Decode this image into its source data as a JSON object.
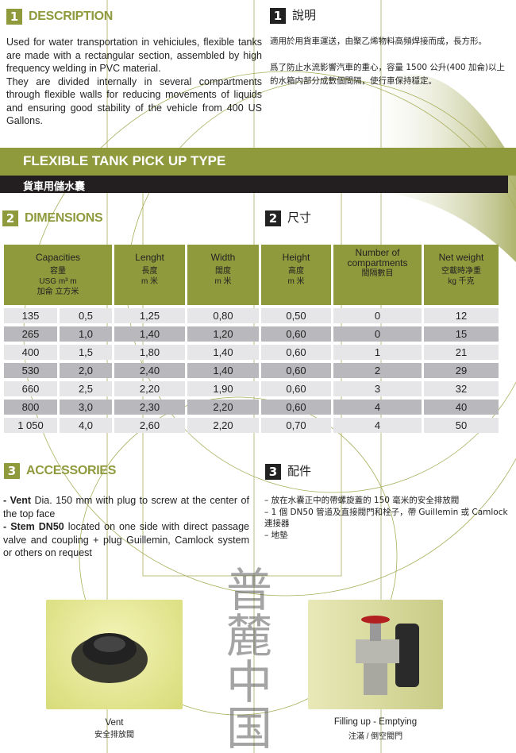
{
  "description": {
    "num": "1",
    "title": "DESCRIPTION",
    "text1": "Used for water transportation in vehiciules, flexible tanks are made with a rectangular section, assembled by high frequency welding in PVC material.",
    "text2": "They are divided internally in several compartments through flexible walls for reducing movements of liquids and ensuring good stability of the vehicle from 400 US Gallons."
  },
  "description_zh": {
    "num": "1",
    "title": "說明",
    "text1": "適用於用貨車運送，由聚乙烯物料高頻焊接而成，長方形。",
    "text2": "爲了防止水流影響汽車的重心，容量 1500 公升(400 加侖)以上的水箱内部分成數個間隔，使行車保持穩定。"
  },
  "banner": {
    "title": "FLEXIBLE TANK PICK UP TYPE",
    "subtitle": "貨車用儲水囊"
  },
  "dimensions": {
    "num": "2",
    "title": "DIMENSIONS",
    "title_zh": "尺寸",
    "headers": [
      {
        "en": "Capacities",
        "zh": "容量",
        "unit": "USG  m³  m",
        "unit_zh": "加侖  立方米"
      },
      {
        "en": "Lenght",
        "zh": "長度",
        "unit": "m 米"
      },
      {
        "en": "Width",
        "zh": "闊度",
        "unit": "m 米"
      },
      {
        "en": "Height",
        "zh": "高度",
        "unit": "m 米"
      },
      {
        "en": "Number of compartments",
        "zh": "間隔數目"
      },
      {
        "en": "Net weight",
        "zh": "空載時净重",
        "unit": "kg 千克"
      }
    ],
    "rows": [
      [
        "135",
        "0,5",
        "1,25",
        "0,80",
        "0,50",
        "0",
        "12"
      ],
      [
        "265",
        "1,0",
        "1,40",
        "1,20",
        "0,60",
        "0",
        "15"
      ],
      [
        "400",
        "1,5",
        "1,80",
        "1,40",
        "0,60",
        "1",
        "21"
      ],
      [
        "530",
        "2,0",
        "2,40",
        "1,40",
        "0,60",
        "2",
        "29"
      ],
      [
        "660",
        "2,5",
        "2,20",
        "1,90",
        "0,60",
        "3",
        "32"
      ],
      [
        "800",
        "3,0",
        "2,30",
        "2,20",
        "0,60",
        "4",
        "40"
      ],
      [
        "1 050",
        "4,0",
        "2,60",
        "2,20",
        "0,70",
        "4",
        "50"
      ]
    ]
  },
  "accessories": {
    "num": "3",
    "title": "ACCESSORIES",
    "title_zh": "配件",
    "item1_bold": "- Vent",
    "item1": " Dia. 150 mm with plug to screw at the center of the top face",
    "item2_bold": "- Stem DN50",
    "item2": " located on one side with direct passage valve and coupling + plug Guillemin, Camlock system or others on request",
    "zh": [
      "– 放在水囊正中的帶螺旋蓋的 150 毫米的安全排放閥",
      "– 1 個 DN50 管道及直接閥門和栓子，帶 Guillemin 或 Camlock 連接器",
      "– 地墊"
    ]
  },
  "photos": [
    {
      "caption": "Vent",
      "caption_zh": "安全排放閥"
    },
    {
      "caption": "Filling up - Emptying",
      "caption_zh": "注滿 / 倒空閥門"
    }
  ],
  "watermark": "普麓中国",
  "colors": {
    "olive": "#8f9a3c",
    "black": "#222222"
  }
}
